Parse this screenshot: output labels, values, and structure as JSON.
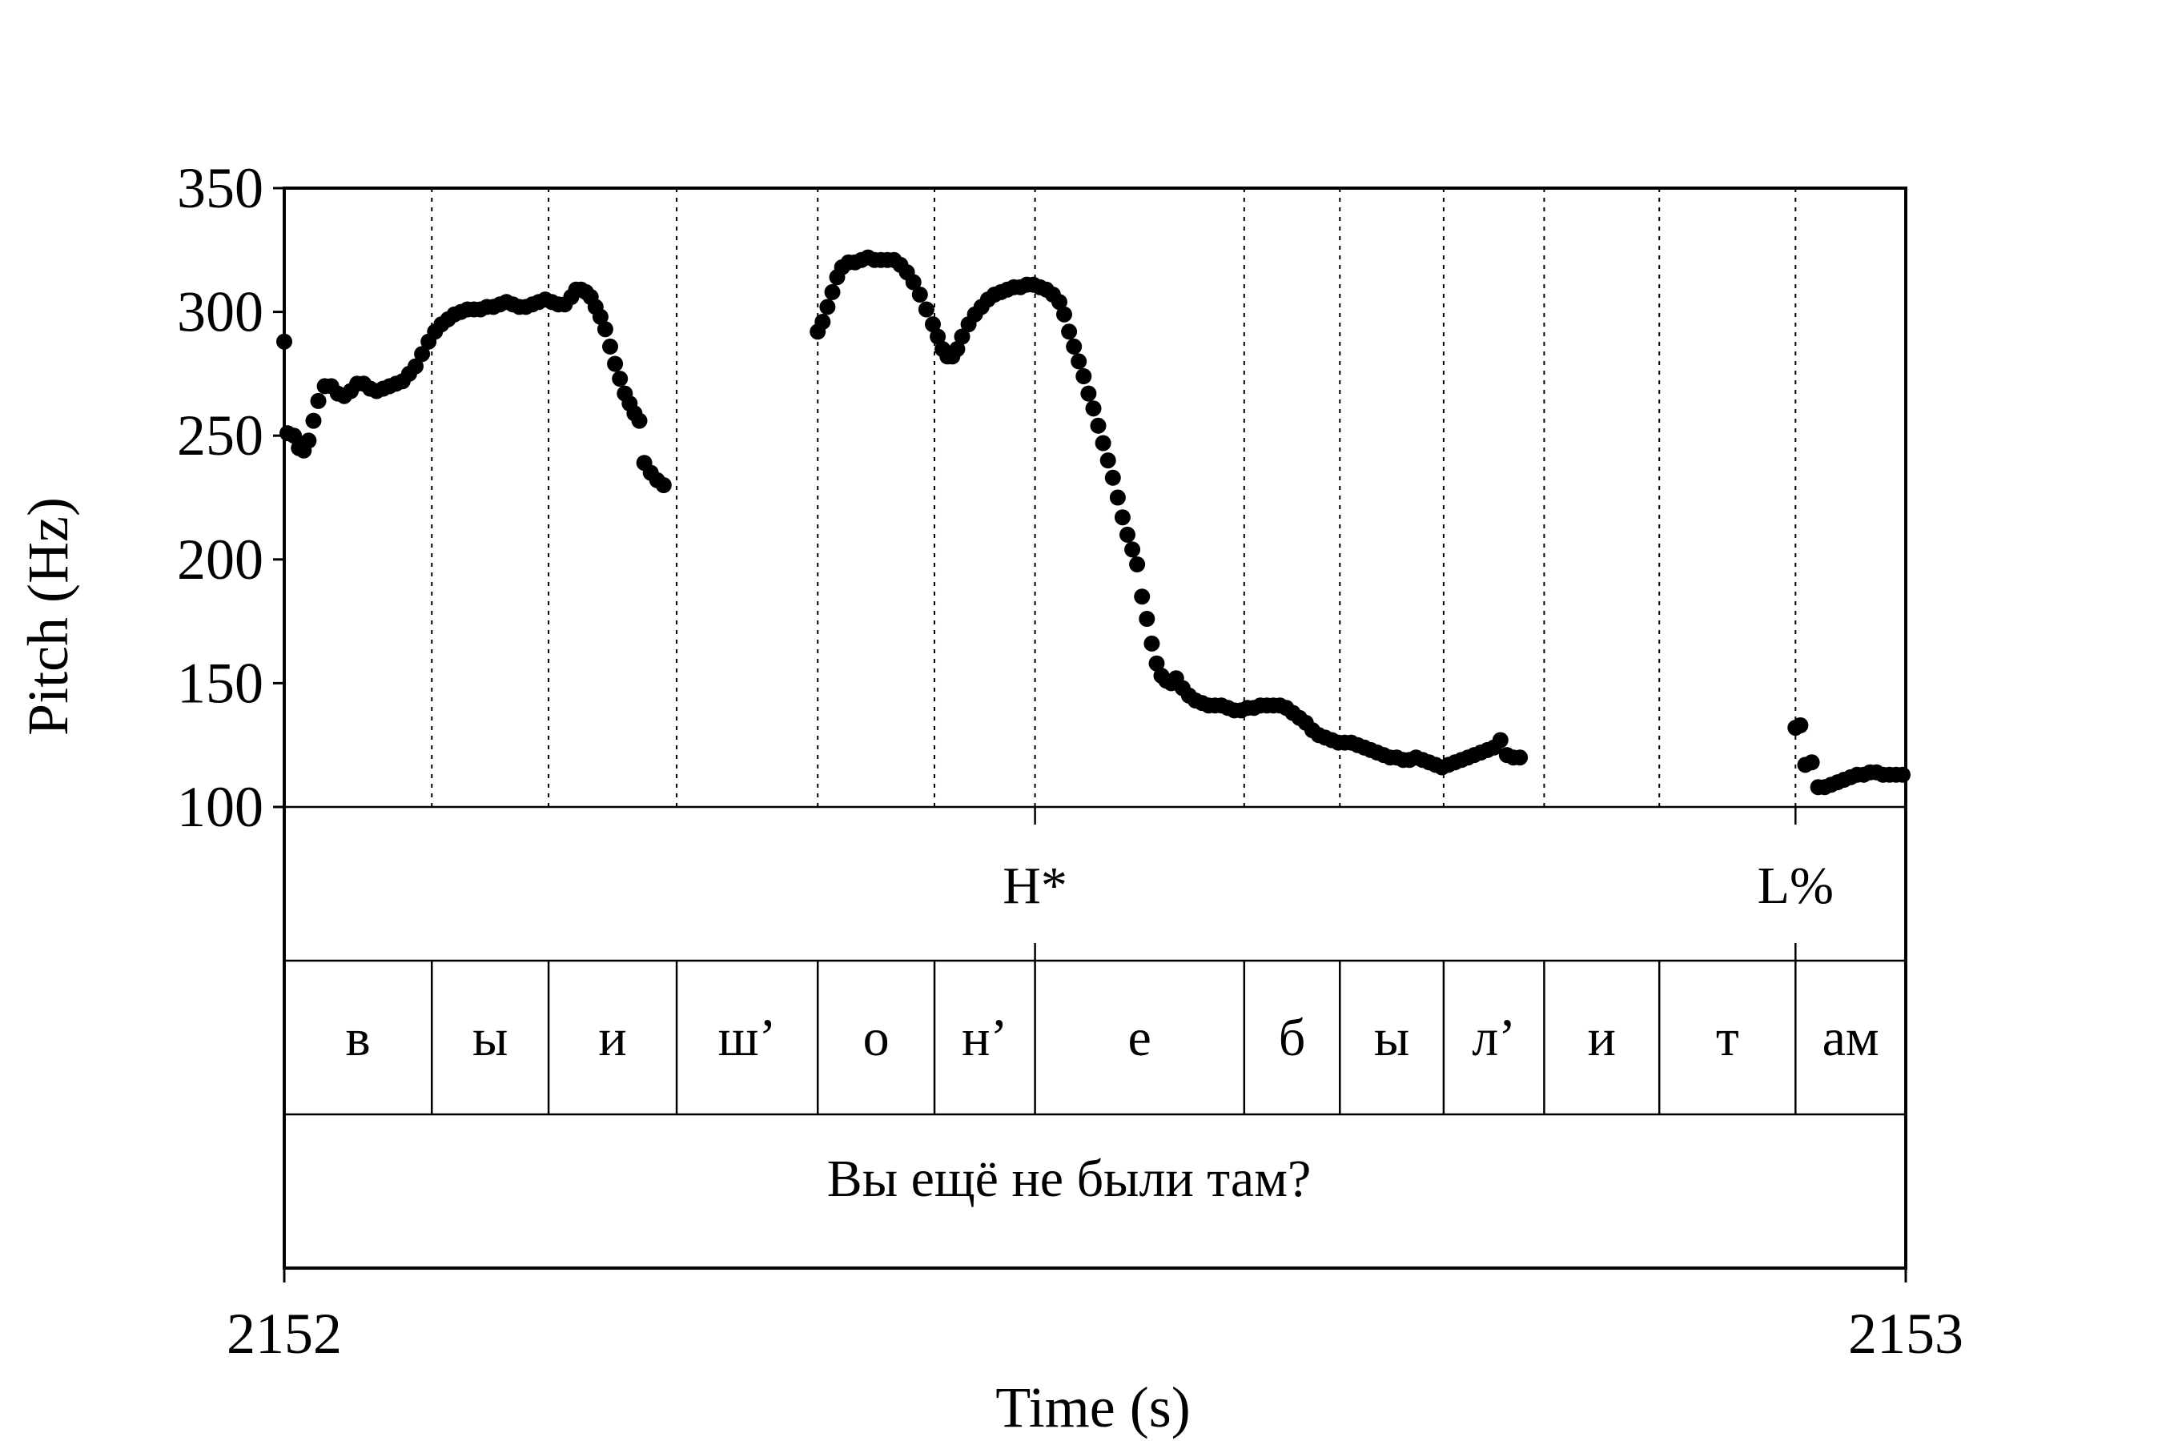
{
  "chart_data": {
    "type": "scatter",
    "xlabel": "Time (s)",
    "ylabel": "Pitch (Hz)",
    "xlim": [
      2152,
      2153
    ],
    "ylim": [
      100,
      350
    ],
    "x_ticks": [
      "2152",
      "2153"
    ],
    "y_ticks": [
      "350",
      "300",
      "250",
      "200",
      "150",
      "100"
    ],
    "grid": "vertical dotted lines at segment boundaries",
    "boundaries": [
      2152.091,
      2152.163,
      2152.242,
      2152.329,
      2152.401,
      2152.463,
      2152.592,
      2152.651,
      2152.715,
      2152.777,
      2152.848,
      2152.932
    ],
    "tones": [
      {
        "label": "H*",
        "x": 2152.463
      },
      {
        "label": "L%",
        "x": 2152.932
      }
    ],
    "segments": [
      {
        "label": "в",
        "start": 2152.0,
        "end": 2152.091
      },
      {
        "label": "ы",
        "start": 2152.091,
        "end": 2152.163
      },
      {
        "label": "и",
        "start": 2152.163,
        "end": 2152.242
      },
      {
        "label": "ш’",
        "start": 2152.242,
        "end": 2152.329
      },
      {
        "label": "о",
        "start": 2152.329,
        "end": 2152.401
      },
      {
        "label": "н’",
        "start": 2152.401,
        "end": 2152.463
      },
      {
        "label": "е",
        "start": 2152.463,
        "end": 2152.592
      },
      {
        "label": "б",
        "start": 2152.592,
        "end": 2152.651
      },
      {
        "label": "ы",
        "start": 2152.651,
        "end": 2152.715
      },
      {
        "label": "л’",
        "start": 2152.715,
        "end": 2152.777
      },
      {
        "label": "и",
        "start": 2152.777,
        "end": 2152.848
      },
      {
        "label": "т",
        "start": 2152.848,
        "end": 2152.932
      },
      {
        "label": "ам",
        "start": 2152.932,
        "end": 2153.0
      }
    ],
    "sentence": "Вы ещё не были там?",
    "series": [
      {
        "values": [
          [
            2152.0,
            288
          ],
          [
            2152.002,
            251
          ],
          [
            2152.006,
            250
          ],
          [
            2152.009,
            245
          ],
          [
            2152.012,
            244
          ],
          [
            2152.015,
            248
          ],
          [
            2152.018,
            256
          ],
          [
            2152.021,
            264
          ],
          [
            2152.025,
            270
          ],
          [
            2152.029,
            270
          ],
          [
            2152.033,
            267
          ],
          [
            2152.037,
            266
          ],
          [
            2152.041,
            268
          ],
          [
            2152.045,
            271
          ],
          [
            2152.049,
            271
          ],
          [
            2152.053,
            269
          ],
          [
            2152.057,
            268
          ],
          [
            2152.061,
            269
          ],
          [
            2152.065,
            270
          ],
          [
            2152.069,
            271
          ],
          [
            2152.073,
            272
          ],
          [
            2152.077,
            275
          ],
          [
            2152.081,
            278
          ],
          [
            2152.085,
            283
          ],
          [
            2152.089,
            288
          ],
          [
            2152.093,
            292
          ],
          [
            2152.097,
            295
          ],
          [
            2152.101,
            297
          ],
          [
            2152.105,
            299
          ],
          [
            2152.109,
            300
          ],
          [
            2152.113,
            301
          ],
          [
            2152.117,
            301
          ],
          [
            2152.121,
            301
          ],
          [
            2152.125,
            302
          ],
          [
            2152.129,
            302
          ],
          [
            2152.133,
            303
          ],
          [
            2152.137,
            304
          ],
          [
            2152.141,
            303
          ],
          [
            2152.145,
            302
          ],
          [
            2152.149,
            302
          ],
          [
            2152.153,
            303
          ],
          [
            2152.157,
            304
          ],
          [
            2152.161,
            305
          ],
          [
            2152.165,
            304
          ],
          [
            2152.169,
            303
          ],
          [
            2152.173,
            303
          ],
          [
            2152.177,
            306
          ],
          [
            2152.18,
            309
          ],
          [
            2152.183,
            309
          ],
          [
            2152.186,
            308
          ],
          [
            2152.189,
            306
          ],
          [
            2152.192,
            302
          ],
          [
            2152.195,
            298
          ],
          [
            2152.198,
            293
          ],
          [
            2152.201,
            286
          ],
          [
            2152.204,
            279
          ],
          [
            2152.207,
            273
          ],
          [
            2152.21,
            267
          ],
          [
            2152.213,
            263
          ],
          [
            2152.216,
            259
          ],
          [
            2152.219,
            256
          ],
          [
            2152.222,
            239
          ],
          [
            2152.226,
            235
          ],
          [
            2152.23,
            232
          ],
          [
            2152.234,
            230
          ],
          [
            2152.329,
            292
          ],
          [
            2152.332,
            296
          ],
          [
            2152.335,
            302
          ],
          [
            2152.338,
            308
          ],
          [
            2152.341,
            314
          ],
          [
            2152.344,
            318
          ],
          [
            2152.348,
            320
          ],
          [
            2152.352,
            320
          ],
          [
            2152.356,
            321
          ],
          [
            2152.36,
            322
          ],
          [
            2152.364,
            321
          ],
          [
            2152.368,
            321
          ],
          [
            2152.372,
            321
          ],
          [
            2152.376,
            321
          ],
          [
            2152.38,
            319
          ],
          [
            2152.384,
            316
          ],
          [
            2152.388,
            312
          ],
          [
            2152.392,
            307
          ],
          [
            2152.396,
            301
          ],
          [
            2152.4,
            295
          ],
          [
            2152.403,
            290
          ],
          [
            2152.406,
            285
          ],
          [
            2152.409,
            282
          ],
          [
            2152.412,
            282
          ],
          [
            2152.415,
            285
          ],
          [
            2152.418,
            290
          ],
          [
            2152.422,
            295
          ],
          [
            2152.426,
            299
          ],
          [
            2152.43,
            302
          ],
          [
            2152.434,
            305
          ],
          [
            2152.438,
            307
          ],
          [
            2152.442,
            308
          ],
          [
            2152.446,
            309
          ],
          [
            2152.45,
            310
          ],
          [
            2152.454,
            310
          ],
          [
            2152.458,
            311
          ],
          [
            2152.462,
            311
          ],
          [
            2152.466,
            310
          ],
          [
            2152.47,
            309
          ],
          [
            2152.474,
            307
          ],
          [
            2152.478,
            304
          ],
          [
            2152.481,
            299
          ],
          [
            2152.484,
            292
          ],
          [
            2152.487,
            286
          ],
          [
            2152.49,
            280
          ],
          [
            2152.493,
            274
          ],
          [
            2152.496,
            267
          ],
          [
            2152.499,
            261
          ],
          [
            2152.502,
            254
          ],
          [
            2152.505,
            247
          ],
          [
            2152.508,
            240
          ],
          [
            2152.511,
            233
          ],
          [
            2152.514,
            225
          ],
          [
            2152.517,
            217
          ],
          [
            2152.52,
            210
          ],
          [
            2152.523,
            204
          ],
          [
            2152.526,
            198
          ],
          [
            2152.529,
            185
          ],
          [
            2152.532,
            176
          ],
          [
            2152.535,
            166
          ],
          [
            2152.538,
            158
          ],
          [
            2152.541,
            153
          ],
          [
            2152.544,
            151
          ],
          [
            2152.547,
            150
          ],
          [
            2152.55,
            152
          ],
          [
            2152.554,
            148
          ],
          [
            2152.558,
            145
          ],
          [
            2152.562,
            143
          ],
          [
            2152.566,
            142
          ],
          [
            2152.57,
            141
          ],
          [
            2152.574,
            141
          ],
          [
            2152.578,
            141
          ],
          [
            2152.582,
            140
          ],
          [
            2152.586,
            139
          ],
          [
            2152.59,
            139
          ],
          [
            2152.594,
            140
          ],
          [
            2152.598,
            140
          ],
          [
            2152.602,
            141
          ],
          [
            2152.606,
            141
          ],
          [
            2152.61,
            141
          ],
          [
            2152.614,
            141
          ],
          [
            2152.618,
            140
          ],
          [
            2152.622,
            138
          ],
          [
            2152.626,
            136
          ],
          [
            2152.63,
            134
          ],
          [
            2152.634,
            131
          ],
          [
            2152.638,
            129
          ],
          [
            2152.642,
            128
          ],
          [
            2152.646,
            127
          ],
          [
            2152.65,
            126
          ],
          [
            2152.654,
            126
          ],
          [
            2152.658,
            126
          ],
          [
            2152.662,
            125
          ],
          [
            2152.666,
            124
          ],
          [
            2152.67,
            123
          ],
          [
            2152.674,
            122
          ],
          [
            2152.678,
            121
          ],
          [
            2152.682,
            120
          ],
          [
            2152.686,
            120
          ],
          [
            2152.69,
            119
          ],
          [
            2152.694,
            119
          ],
          [
            2152.698,
            120
          ],
          [
            2152.702,
            119
          ],
          [
            2152.706,
            118
          ],
          [
            2152.71,
            117
          ],
          [
            2152.714,
            116
          ],
          [
            2152.718,
            117
          ],
          [
            2152.722,
            118
          ],
          [
            2152.726,
            119
          ],
          [
            2152.73,
            120
          ],
          [
            2152.734,
            121
          ],
          [
            2152.738,
            122
          ],
          [
            2152.742,
            123
          ],
          [
            2152.746,
            124
          ],
          [
            2152.75,
            127
          ],
          [
            2152.754,
            121
          ],
          [
            2152.758,
            120
          ],
          [
            2152.762,
            120
          ],
          [
            2152.932,
            132
          ],
          [
            2152.935,
            133
          ],
          [
            2152.938,
            117
          ],
          [
            2152.942,
            118
          ],
          [
            2152.946,
            108
          ],
          [
            2152.95,
            108
          ],
          [
            2152.954,
            109
          ],
          [
            2152.958,
            110
          ],
          [
            2152.962,
            111
          ],
          [
            2152.966,
            112
          ],
          [
            2152.97,
            113
          ],
          [
            2152.974,
            113
          ],
          [
            2152.978,
            114
          ],
          [
            2152.982,
            114
          ],
          [
            2152.986,
            113
          ],
          [
            2152.99,
            113
          ],
          [
            2152.994,
            113
          ],
          [
            2152.998,
            113
          ]
        ]
      }
    ]
  }
}
